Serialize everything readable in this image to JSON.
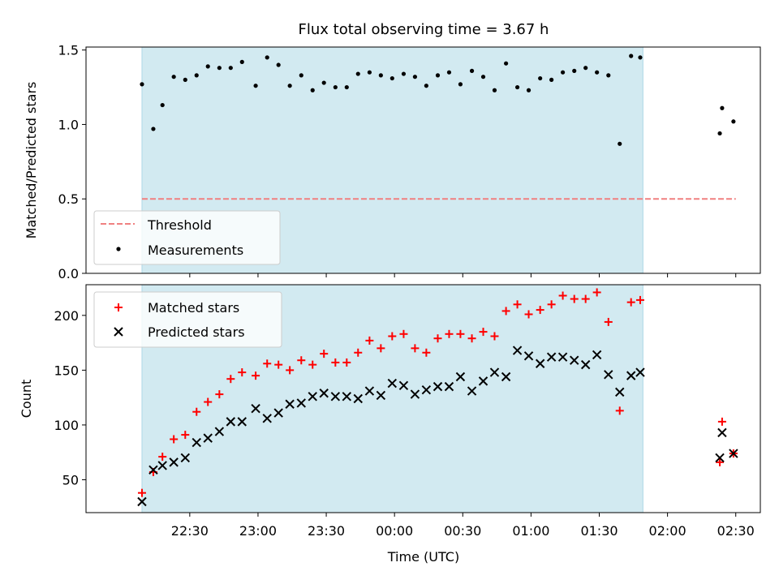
{
  "title": "Flux total observing time = 3.67 h",
  "colors": {
    "shade": "#add8e6",
    "threshold": "#f08080",
    "matched": "#ff0000",
    "predicted": "#000000",
    "measurement": "#000000"
  },
  "x_axis": {
    "label": "Time (UTC)",
    "ticks": [
      {
        "t": 22.5,
        "label": "22:30"
      },
      {
        "t": 23.0,
        "label": "23:00"
      },
      {
        "t": 23.5,
        "label": "23:30"
      },
      {
        "t": 24.0,
        "label": "00:00"
      },
      {
        "t": 24.5,
        "label": "00:30"
      },
      {
        "t": 25.0,
        "label": "01:00"
      },
      {
        "t": 25.5,
        "label": "01:30"
      },
      {
        "t": 26.0,
        "label": "02:00"
      },
      {
        "t": 26.5,
        "label": "02:30"
      }
    ]
  },
  "shaded_span": {
    "start": 22.15,
    "end": 25.82
  },
  "chart_data": [
    {
      "type": "scatter",
      "ylabel": "Matched/Predicted stars",
      "ylim": [
        0,
        1.52
      ],
      "xlim": [
        21.74,
        26.68
      ],
      "yticks": [
        0.0,
        0.5,
        1.0,
        1.5
      ],
      "ytick_labels": [
        "0.0",
        "0.5",
        "1.0",
        "1.5"
      ],
      "legend": {
        "position": "lower-left",
        "entries": [
          "Threshold",
          "Measurements"
        ]
      },
      "threshold": {
        "name": "Threshold",
        "value": 0.5,
        "x_range": [
          22.15,
          26.5
        ]
      },
      "series": [
        {
          "name": "Measurements",
          "x": [
            22.15,
            22.233,
            22.3,
            22.383,
            22.467,
            22.55,
            22.633,
            22.717,
            22.8,
            22.883,
            22.983,
            23.067,
            23.15,
            23.233,
            23.317,
            23.4,
            23.483,
            23.567,
            23.65,
            23.733,
            23.817,
            23.9,
            23.983,
            24.067,
            24.15,
            24.233,
            24.317,
            24.4,
            24.483,
            24.567,
            24.65,
            24.733,
            24.817,
            24.9,
            24.983,
            25.067,
            25.15,
            25.233,
            25.317,
            25.4,
            25.483,
            25.567,
            25.65,
            25.733,
            25.8,
            26.383,
            26.4,
            26.483
          ],
          "y": [
            1.27,
            0.97,
            1.13,
            1.32,
            1.3,
            1.33,
            1.39,
            1.38,
            1.38,
            1.42,
            1.26,
            1.45,
            1.4,
            1.26,
            1.33,
            1.23,
            1.28,
            1.25,
            1.25,
            1.34,
            1.35,
            1.33,
            1.31,
            1.34,
            1.32,
            1.26,
            1.33,
            1.35,
            1.27,
            1.36,
            1.32,
            1.23,
            1.41,
            1.25,
            1.23,
            1.31,
            1.3,
            1.35,
            1.36,
            1.38,
            1.35,
            1.33,
            0.87,
            1.46,
            1.45,
            0.94,
            1.11,
            1.02
          ]
        }
      ]
    },
    {
      "type": "scatter",
      "ylabel": "Count",
      "ylim": [
        20,
        228
      ],
      "xlim": [
        21.74,
        26.68
      ],
      "yticks": [
        50,
        100,
        150,
        200
      ],
      "ytick_labels": [
        "50",
        "100",
        "150",
        "200"
      ],
      "legend": {
        "position": "top-left",
        "entries": [
          "Matched stars",
          "Predicted stars"
        ]
      },
      "series": [
        {
          "name": "Matched stars",
          "marker": "plus",
          "x": [
            22.15,
            22.233,
            22.3,
            22.383,
            22.467,
            22.55,
            22.633,
            22.717,
            22.8,
            22.883,
            22.983,
            23.067,
            23.15,
            23.233,
            23.317,
            23.4,
            23.483,
            23.567,
            23.65,
            23.733,
            23.817,
            23.9,
            23.983,
            24.067,
            24.15,
            24.233,
            24.317,
            24.4,
            24.483,
            24.567,
            24.65,
            24.733,
            24.817,
            24.9,
            24.983,
            25.067,
            25.15,
            25.233,
            25.317,
            25.4,
            25.483,
            25.567,
            25.65,
            25.733,
            25.8,
            26.383,
            26.4,
            26.483
          ],
          "y": [
            38,
            57,
            71,
            87,
            91,
            112,
            121,
            128,
            142,
            148,
            145,
            156,
            155,
            150,
            159,
            155,
            165,
            157,
            157,
            166,
            177,
            170,
            181,
            183,
            170,
            166,
            179,
            183,
            183,
            179,
            185,
            181,
            204,
            210,
            201,
            205,
            210,
            218,
            215,
            215,
            221,
            194,
            113,
            212,
            214,
            66,
            103,
            74
          ]
        },
        {
          "name": "Predicted stars",
          "marker": "x",
          "x": [
            22.15,
            22.233,
            22.3,
            22.383,
            22.467,
            22.55,
            22.633,
            22.717,
            22.8,
            22.883,
            22.983,
            23.067,
            23.15,
            23.233,
            23.317,
            23.4,
            23.483,
            23.567,
            23.65,
            23.733,
            23.817,
            23.9,
            23.983,
            24.067,
            24.15,
            24.233,
            24.317,
            24.4,
            24.483,
            24.567,
            24.65,
            24.733,
            24.817,
            24.9,
            24.983,
            25.067,
            25.15,
            25.233,
            25.317,
            25.4,
            25.483,
            25.567,
            25.65,
            25.733,
            25.8,
            26.383,
            26.4,
            26.483
          ],
          "y": [
            30,
            59,
            63,
            66,
            70,
            84,
            88,
            94,
            103,
            103,
            115,
            106,
            111,
            119,
            120,
            126,
            129,
            126,
            126,
            124,
            131,
            127,
            138,
            136,
            128,
            132,
            135,
            135,
            144,
            131,
            140,
            148,
            144,
            168,
            163,
            156,
            162,
            162,
            159,
            155,
            164,
            146,
            130,
            145,
            148,
            70,
            93,
            74
          ]
        }
      ]
    }
  ]
}
